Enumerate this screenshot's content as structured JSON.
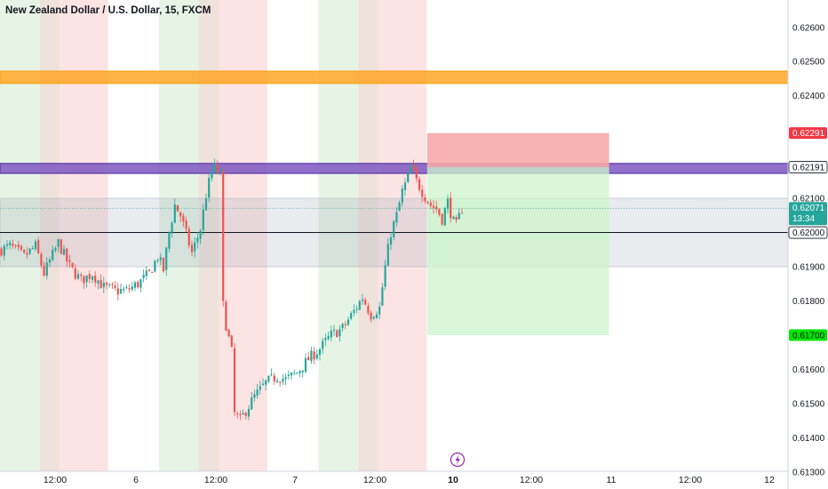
{
  "header": {
    "title": "New Zealand Dollar / U.S. Dollar, 15, FXCM"
  },
  "colors": {
    "up": "#26a69a",
    "down": "#ef5350",
    "orange_zone": "#ffa726",
    "purple_zone": "#7e57c2",
    "stop_zone": "#f7a8a8",
    "target_zone": "#ccf5cc",
    "session_green": "#e6f4e6",
    "session_brown": "#efe2da",
    "session_red": "#fde4e4",
    "current_price_badge": "#26a69a",
    "stop_badge": "#f23645",
    "target_badge": "#00e600",
    "level_badge": "#131722"
  },
  "icons": {
    "events_marker": "lightning-icon"
  },
  "chart_data": {
    "type": "candlestick",
    "title": "New Zealand Dollar / U.S. Dollar, 15, FXCM",
    "symbol": "NZDUSD",
    "interval": "15",
    "source": "FXCM",
    "y_axis_side": "right",
    "ylim": [
      0.6125,
      0.6268
    ],
    "y_ticks": [
      "0.62600",
      "0.62500",
      "0.62400",
      "0.62100",
      "0.61900",
      "0.61800",
      "0.61600",
      "0.61500",
      "0.61400",
      "0.61300"
    ],
    "x_ticks": [
      {
        "label": "12:00",
        "bold": false
      },
      {
        "label": "6",
        "bold": false
      },
      {
        "label": "12:00",
        "bold": false
      },
      {
        "label": "7",
        "bold": false
      },
      {
        "label": "12:00",
        "bold": false
      },
      {
        "label": "10",
        "bold": true
      },
      {
        "label": "12:00",
        "bold": false
      },
      {
        "label": "11",
        "bold": false
      },
      {
        "label": "12:00",
        "bold": false
      },
      {
        "label": "12",
        "bold": false
      }
    ],
    "price_badges": [
      {
        "label": "0.62291",
        "price": 0.62291,
        "role": "stop"
      },
      {
        "label": "0.62191",
        "price": 0.62191,
        "role": "level"
      },
      {
        "label": "0.62071",
        "price": 0.62071,
        "role": "current",
        "countdown": "13:34"
      },
      {
        "label": "0.62000",
        "price": 0.62,
        "role": "level"
      },
      {
        "label": "0.61700",
        "price": 0.617,
        "role": "target"
      }
    ],
    "zones": [
      {
        "name": "orange resistance zone",
        "from": 0.62436,
        "to": 0.62472
      },
      {
        "name": "purple resistance zone",
        "from": 0.62173,
        "to": 0.62202
      },
      {
        "name": "grey range",
        "from": 0.619,
        "to": 0.621
      }
    ],
    "horizontal_lines": [
      {
        "price": 0.62,
        "style": "solid"
      },
      {
        "price": 0.62071,
        "style": "dotted"
      }
    ],
    "short_position": {
      "entry": 0.62191,
      "stop": 0.62291,
      "target": 0.617,
      "start": 144,
      "end": 208
    },
    "sessions": [
      {
        "start": 0,
        "end": 14,
        "kind": "green"
      },
      {
        "start": 14,
        "end": 21,
        "kind": "brown"
      },
      {
        "start": 21,
        "end": 38,
        "kind": "red"
      },
      {
        "start": 56,
        "end": 70,
        "kind": "green"
      },
      {
        "start": 70,
        "end": 77,
        "kind": "brown"
      },
      {
        "start": 77,
        "end": 94,
        "kind": "red"
      },
      {
        "start": 112,
        "end": 126,
        "kind": "green"
      },
      {
        "start": 126,
        "end": 133,
        "kind": "brown"
      },
      {
        "start": 133,
        "end": 150,
        "kind": "red"
      }
    ],
    "series": [
      {
        "name": "NZDUSD",
        "type": "candlestick",
        "close_path": [
          [
            0,
            0.6195
          ],
          [
            3,
            0.6196
          ],
          [
            8,
            0.6193
          ],
          [
            12,
            0.6196
          ],
          [
            15,
            0.6188
          ],
          [
            20,
            0.6197
          ],
          [
            24,
            0.619
          ],
          [
            28,
            0.6186
          ],
          [
            32,
            0.6188
          ],
          [
            36,
            0.6184
          ],
          [
            40,
            0.6183
          ],
          [
            44,
            0.6183
          ],
          [
            48,
            0.6185
          ],
          [
            52,
            0.6188
          ],
          [
            55,
            0.6193
          ],
          [
            57,
            0.6189
          ],
          [
            59,
            0.62
          ],
          [
            61,
            0.6208
          ],
          [
            63,
            0.6205
          ],
          [
            67,
            0.6194
          ],
          [
            70,
            0.6201
          ],
          [
            72,
            0.6211
          ],
          [
            74,
            0.6218
          ],
          [
            75,
            0.6219
          ],
          [
            77,
            0.6217
          ],
          [
            78,
            0.6182
          ],
          [
            79,
            0.6173
          ],
          [
            81,
            0.6165
          ],
          [
            82,
            0.6147
          ],
          [
            84,
            0.6145
          ],
          [
            86,
            0.6148
          ],
          [
            89,
            0.6152
          ],
          [
            93,
            0.6156
          ],
          [
            97,
            0.6158
          ],
          [
            100,
            0.6157
          ],
          [
            104,
            0.6159
          ],
          [
            108,
            0.6163
          ],
          [
            112,
            0.6166
          ],
          [
            116,
            0.617
          ],
          [
            120,
            0.6172
          ],
          [
            124,
            0.6177
          ],
          [
            127,
            0.6181
          ],
          [
            130,
            0.6176
          ],
          [
            133,
            0.6178
          ],
          [
            135,
            0.619
          ],
          [
            137,
            0.62
          ],
          [
            139,
            0.6205
          ],
          [
            141,
            0.6212
          ],
          [
            143,
            0.6216
          ],
          [
            144,
            0.6219
          ],
          [
            146,
            0.6215
          ],
          [
            148,
            0.6212
          ],
          [
            151,
            0.6208
          ],
          [
            153,
            0.6207
          ],
          [
            155,
            0.6204
          ],
          [
            157,
            0.6209
          ],
          [
            159,
            0.6203
          ],
          [
            160,
            0.6202
          ],
          [
            162,
            0.6207
          ]
        ]
      }
    ]
  }
}
